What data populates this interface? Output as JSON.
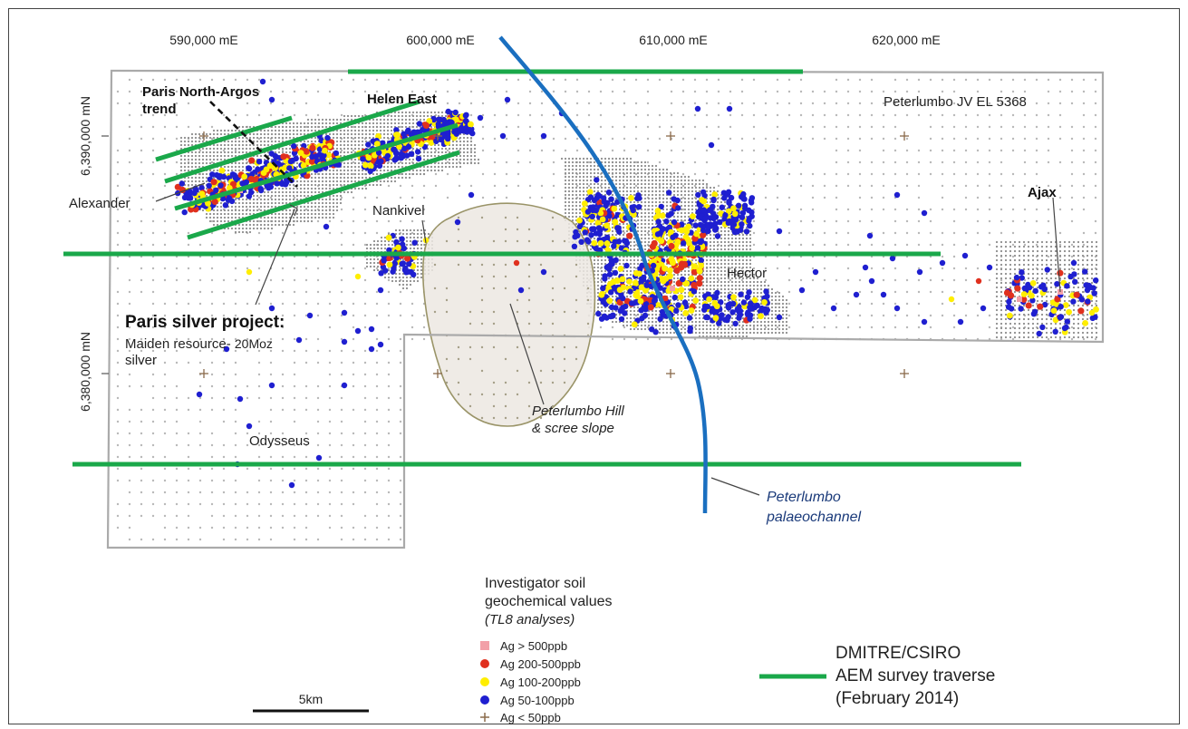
{
  "map": {
    "axes": {
      "easting_labels": [
        "590,000 mE",
        "600,000 mE",
        "610,000 mE",
        "620,000 mE"
      ],
      "northing_labels": [
        "6,390,000 mN",
        "6,380,000 mN"
      ]
    },
    "tenement_label": "Peterlumbo JV EL 5368",
    "labels": {
      "paris_north_line1": "Paris North-Argos",
      "paris_north_line2": "trend",
      "helen_east": "Helen East",
      "alexander": "Alexander",
      "nankivel": "Nankivel",
      "ajax": "Ajax",
      "hector": "Hector",
      "odysseus": "Odysseus",
      "paris_title": "Paris silver project",
      "paris_colon": ":",
      "paris_sub1": "Maiden resource-",
      "paris_sub1b": "20Moz",
      "paris_sub2": "silver",
      "hill_line1": "Peterlumbo Hill",
      "hill_line2": "& scree slope",
      "channel_line1": "Peterlumbo",
      "channel_line2": "palaeochannel"
    },
    "legend": {
      "title_line1": "Investigator soil",
      "title_line2": "geochemical values",
      "subtitle": "(TL8 analyses)",
      "items": [
        {
          "symbol": "square",
          "color": "#f2a0a8",
          "label": "Ag > 500ppb"
        },
        {
          "symbol": "dot",
          "color": "#e0301e",
          "label": "Ag 200-500ppb"
        },
        {
          "symbol": "dot",
          "color": "#ffee00",
          "label": "Ag 100-200ppb"
        },
        {
          "symbol": "dot",
          "color": "#1f1fd0",
          "label": "Ag  50-100ppb"
        },
        {
          "symbol": "plus",
          "color": "#8a6a4a",
          "label": "Ag < 50ppb"
        }
      ]
    },
    "aem_legend": {
      "line1": "DMITRE/CSIRO",
      "line2": "AEM survey traverse",
      "line3": "(February 2014)"
    },
    "scale_bar": "5km",
    "colors": {
      "aem_traverse": "#1aa84a",
      "palaeochannel": "#1a6fc0",
      "tenement_boundary": "#aaaaaa",
      "hill_outline": "#9a9468",
      "high_ag": "#e0301e",
      "mid_ag": "#ffee00",
      "low_ag": "#1f1fd0"
    }
  }
}
